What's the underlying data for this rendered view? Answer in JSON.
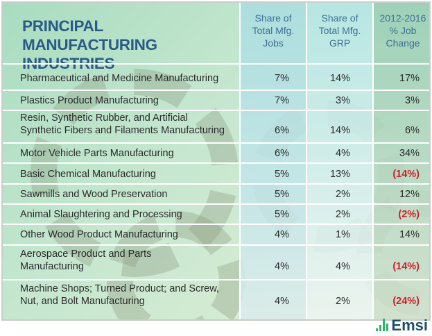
{
  "table": {
    "title": "PRINCIPAL MANUFACTURING INDUSTRIES",
    "title_lines": [
      "PRINCIPAL MANUFACTURING",
      "INDUSTRIES"
    ],
    "columns": [
      {
        "key": "jobs",
        "lines": [
          "Share of",
          "Total Mfg.",
          "Jobs"
        ]
      },
      {
        "key": "grp",
        "lines": [
          "Share of",
          "Total Mfg.",
          "GRP"
        ]
      },
      {
        "key": "change",
        "lines": [
          "2012-2016",
          "% Job",
          "Change"
        ]
      }
    ],
    "rows": [
      {
        "industry": [
          "Pharmaceutical and Medicine Manufacturing"
        ],
        "jobs": "7%",
        "grp": "14%",
        "change": "17%",
        "negative": false
      },
      {
        "industry": [
          "Plastics Product Manufacturing"
        ],
        "jobs": "7%",
        "grp": "3%",
        "change": "3%",
        "negative": false
      },
      {
        "industry": [
          "Resin, Synthetic Rubber, and Artificial",
          "Synthetic Fibers and Filaments Manufacturing"
        ],
        "jobs": "6%",
        "grp": "14%",
        "change": "6%",
        "negative": false
      },
      {
        "industry": [
          "Motor Vehicle Parts Manufacturing"
        ],
        "jobs": "6%",
        "grp": "4%",
        "change": "34%",
        "negative": false
      },
      {
        "industry": [
          "Basic Chemical Manufacturing"
        ],
        "jobs": "5%",
        "grp": "13%",
        "change": "(14%)",
        "negative": true
      },
      {
        "industry": [
          "Sawmills and Wood Preservation"
        ],
        "jobs": "5%",
        "grp": "2%",
        "change": "12%",
        "negative": false
      },
      {
        "industry": [
          "Animal Slaughtering and Processing"
        ],
        "jobs": "5%",
        "grp": "2%",
        "change": "(2%)",
        "negative": true
      },
      {
        "industry": [
          "Other Wood Product Manufacturing"
        ],
        "jobs": "4%",
        "grp": "1%",
        "change": "14%",
        "negative": false
      },
      {
        "industry": [
          "Aerospace Product and Parts",
          "Manufacturing"
        ],
        "jobs": "4%",
        "grp": "4%",
        "change": "(14%)",
        "negative": true
      },
      {
        "industry": [
          "Machine Shops; Turned Product; and Screw,",
          "Nut, and Bolt Manufacturing"
        ],
        "jobs": "4%",
        "grp": "2%",
        "change": "(24%)",
        "negative": true
      }
    ]
  },
  "brand": {
    "logo_text": "Emsi",
    "logo_icon": "bar-chart-icon"
  },
  "colors": {
    "title": "#2a5a85",
    "header_text": "#3e6f96",
    "negative": "#d0202a",
    "logo_bars": "#2fb46e",
    "logo_text": "#1f4e67"
  }
}
